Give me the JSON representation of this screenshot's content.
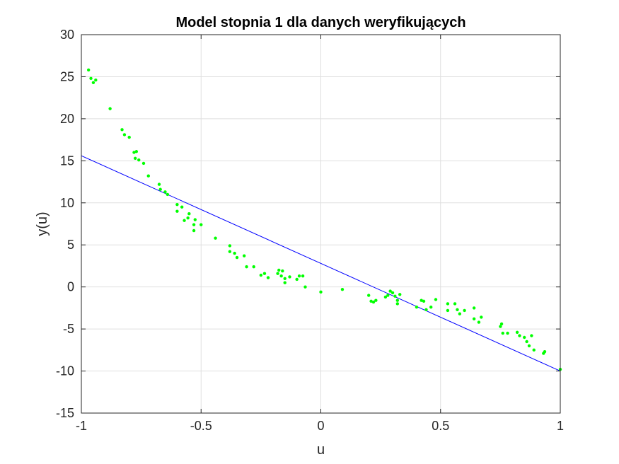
{
  "chart_data": {
    "type": "scatter",
    "title": "Model stopnia 1 dla danych weryfikujących",
    "xlabel": "u",
    "ylabel": "y(u)",
    "xlim": [
      -1,
      1
    ],
    "ylim": [
      -15,
      30
    ],
    "grid": true,
    "x_ticks": [
      -1,
      -0.5,
      0,
      0.5,
      1
    ],
    "x_tick_labels": [
      "-1",
      "-0.5",
      "0",
      "0.5",
      "1"
    ],
    "y_ticks": [
      -15,
      -10,
      -5,
      0,
      5,
      10,
      15,
      20,
      25,
      30
    ],
    "y_tick_labels": [
      "-15",
      "-10",
      "-5",
      "0",
      "5",
      "10",
      "15",
      "20",
      "25",
      "30"
    ],
    "colors": {
      "points": "#00ff00",
      "line": "#0000ff",
      "grid": "#dfdfdf",
      "axes": "#262626"
    },
    "series": [
      {
        "mark": "points",
        "x": [
          -0.97,
          -0.96,
          -0.95,
          -0.94,
          -0.88,
          -0.83,
          -0.82,
          -0.8,
          -0.78,
          -0.775,
          -0.77,
          -0.76,
          -0.74,
          -0.72,
          -0.675,
          -0.67,
          -0.65,
          -0.64,
          -0.6,
          -0.6,
          -0.58,
          -0.57,
          -0.555,
          -0.55,
          -0.53,
          -0.53,
          -0.525,
          -0.5,
          -0.44,
          -0.38,
          -0.38,
          -0.36,
          -0.35,
          -0.32,
          -0.31,
          -0.28,
          -0.25,
          -0.235,
          -0.22,
          -0.18,
          -0.175,
          -0.165,
          -0.16,
          -0.15,
          -0.15,
          -0.13,
          -0.1,
          -0.09,
          -0.075,
          -0.065,
          0,
          0.09,
          0.2,
          0.21,
          0.22,
          0.23,
          0.27,
          0.28,
          0.29,
          0.3,
          0.31,
          0.32,
          0.32,
          0.33,
          0.4,
          0.42,
          0.43,
          0.44,
          0.46,
          0.48,
          0.53,
          0.53,
          0.56,
          0.57,
          0.58,
          0.6,
          0.64,
          0.64,
          0.66,
          0.67,
          0.75,
          0.755,
          0.76,
          0.78,
          0.82,
          0.83,
          0.85,
          0.86,
          0.87,
          0.88,
          0.89,
          0.93,
          0.935,
          1.0
        ],
        "y": [
          25.8,
          24.8,
          24.3,
          24.6,
          21.2,
          18.7,
          18.1,
          17.8,
          16.0,
          15.3,
          16.1,
          15.1,
          14.7,
          13.2,
          12.2,
          11.6,
          11.3,
          11.0,
          9.8,
          9.0,
          9.5,
          7.9,
          8.2,
          8.7,
          7.4,
          6.7,
          8.0,
          7.4,
          5.8,
          4.9,
          4.2,
          4.0,
          3.5,
          3.7,
          2.4,
          2.4,
          1.4,
          1.6,
          1.1,
          1.6,
          2.0,
          1.3,
          1.9,
          1.0,
          0.5,
          1.2,
          0.9,
          1.3,
          1.3,
          0.0,
          -0.6,
          -0.3,
          -1.0,
          -1.7,
          -1.8,
          -1.6,
          -1.2,
          -1.0,
          -0.5,
          -0.7,
          -1.1,
          -2.0,
          -1.6,
          -0.9,
          -2.4,
          -1.6,
          -1.7,
          -2.7,
          -2.4,
          -1.5,
          -2.0,
          -2.8,
          -2.0,
          -2.7,
          -3.2,
          -2.8,
          -2.5,
          -3.8,
          -4.2,
          -3.6,
          -4.7,
          -4.4,
          -5.5,
          -5.5,
          -5.4,
          -5.8,
          -6.0,
          -6.5,
          -7.0,
          -5.8,
          -7.5,
          -7.9,
          -7.7,
          -9.8
        ]
      },
      {
        "mark": "line",
        "x": [
          -1,
          1
        ],
        "y": [
          15.6,
          -10.0
        ]
      }
    ]
  }
}
